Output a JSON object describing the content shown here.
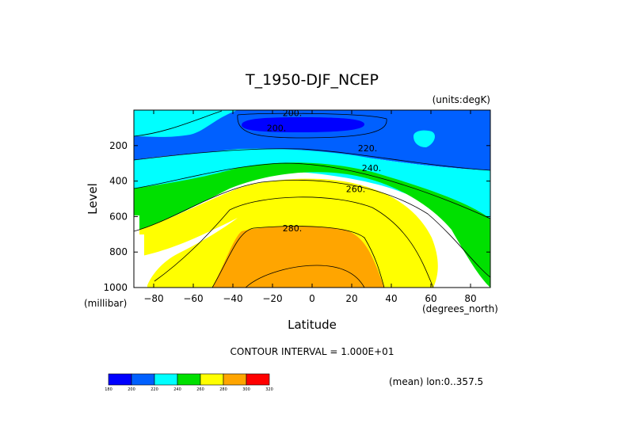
{
  "chart_data": {
    "type": "contour",
    "title": "T_1950-DJF_NCEP",
    "units_note": "(units:degK)",
    "xlabel": "Latitude",
    "x_units": "(degrees_north)",
    "ylabel": "Level",
    "y_units": "(millibar)",
    "xlim": [
      -90,
      90
    ],
    "ylim": [
      1000,
      0
    ],
    "x_ticks": [
      -80,
      -60,
      -40,
      -20,
      0,
      20,
      40,
      60,
      80
    ],
    "x_tick_labels": [
      "−80",
      "−60",
      "−40",
      "−20",
      "0",
      "20",
      "40",
      "60",
      "80"
    ],
    "y_ticks": [
      200,
      400,
      600,
      800,
      1000
    ],
    "y_tick_labels": [
      "200",
      "400",
      "600",
      "800",
      "1000"
    ],
    "contour_interval_text": "CONTOUR INTERVAL = 1.000E+01",
    "mean_note": "(mean) lon:0..357.5",
    "contour_labels": [
      {
        "text": "200.",
        "lat": -10,
        "level": 15
      },
      {
        "text": "200.",
        "lat": -18,
        "level": 100
      },
      {
        "text": "220.",
        "lat": 28,
        "level": 215
      },
      {
        "text": "240.",
        "lat": 30,
        "level": 325
      },
      {
        "text": "260.",
        "lat": 22,
        "level": 445
      },
      {
        "text": "280.",
        "lat": -10,
        "level": 665
      }
    ],
    "colorbar": {
      "bins": [
        180,
        200,
        220,
        240,
        260,
        280,
        300,
        320
      ],
      "labels": [
        "180",
        "200",
        "220",
        "240",
        "260",
        "280",
        "300",
        "320"
      ],
      "colors": [
        "#0000ff",
        "#0060ff",
        "#00ffff",
        "#00e000",
        "#ffff00",
        "#ffa500",
        "#ff0000"
      ]
    },
    "field_model": {
      "description_none": true,
      "bands": [
        {
          "fill": "#0060ff",
          "min": 200,
          "max": 220
        },
        {
          "fill": "#00ffff",
          "min": 220,
          "max": 240
        },
        {
          "fill": "#00e000",
          "min": 240,
          "max": 260
        },
        {
          "fill": "#ffff00",
          "min": 260,
          "max": 280
        },
        {
          "fill": "#ffa500",
          "min": 280,
          "max": 300
        }
      ]
    }
  },
  "colors": {
    "background": "#ffffff",
    "axis": "#000000"
  }
}
